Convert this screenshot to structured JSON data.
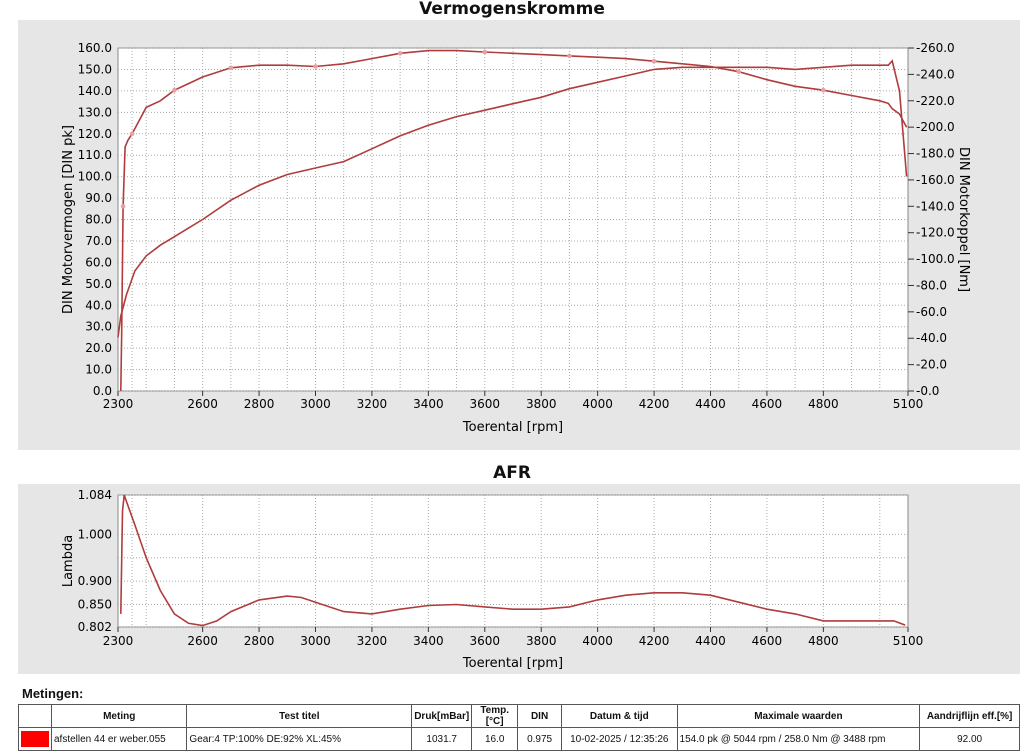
{
  "chart_data": [
    {
      "type": "line",
      "title": "Vermogenskromme",
      "xlabel": "Toerental [rpm]",
      "ylabel": "DIN Motorvermogen [DIN pk]",
      "y2label": "DIN Motorkoppel [Nm]",
      "xlim": [
        2300,
        5100
      ],
      "ylim": [
        0,
        160
      ],
      "y2lim": [
        0,
        260
      ],
      "x_ticks": [
        2300,
        2600,
        2800,
        3000,
        3200,
        3400,
        3600,
        3800,
        4000,
        4200,
        4400,
        4600,
        4800,
        5100
      ],
      "y_ticks": [
        "0.0",
        "10.0",
        "20.0",
        "30.0",
        "40.0",
        "50.0",
        "60.0",
        "70.0",
        "80.0",
        "90.0",
        "100.0",
        "110.0",
        "120.0",
        "130.0",
        "140.0",
        "150.0",
        "160.0"
      ],
      "y2_ticks": [
        "0.0",
        "20.0",
        "40.0",
        "60.0",
        "80.0",
        "100.0",
        "120.0",
        "140.0",
        "160.0",
        "180.0",
        "200.0",
        "220.0",
        "240.0",
        "260.0"
      ],
      "grid": true,
      "series": [
        {
          "axis": "right",
          "color": "#b03c3c",
          "x": [
            2310,
            2313,
            2318,
            2325,
            2335,
            2350,
            2400,
            2450,
            2500,
            2550,
            2600,
            2700,
            2800,
            2900,
            3000,
            3100,
            3200,
            3300,
            3400,
            3500,
            3600,
            3700,
            3800,
            3900,
            4000,
            4100,
            4200,
            4300,
            4400,
            4500,
            4600,
            4700,
            4800,
            4900,
            5000,
            5030,
            5044,
            5070,
            5095
          ],
          "y": [
            0,
            45,
            140,
            185,
            190,
            195,
            215,
            220,
            228,
            233,
            238,
            245,
            247,
            247,
            246,
            248,
            252,
            256,
            258,
            258,
            257,
            256,
            255,
            254,
            253,
            252,
            250,
            248,
            246,
            242,
            236,
            231,
            228,
            224,
            220,
            218,
            214,
            210,
            200
          ]
        },
        {
          "axis": "left",
          "color": "#b03c3c",
          "x": [
            2300,
            2310,
            2330,
            2360,
            2400,
            2450,
            2500,
            2550,
            2600,
            2700,
            2800,
            2900,
            3000,
            3100,
            3200,
            3300,
            3400,
            3500,
            3600,
            3700,
            3800,
            3900,
            4000,
            4100,
            4200,
            4300,
            4400,
            4500,
            4600,
            4700,
            4800,
            4900,
            5000,
            5030,
            5044,
            5070,
            5095
          ],
          "y": [
            25,
            35,
            45,
            56,
            63,
            68,
            72,
            76,
            80,
            89,
            96,
            101,
            104,
            107,
            113,
            119,
            124,
            128,
            131,
            134,
            137,
            141,
            144,
            147,
            150,
            151,
            151,
            151,
            151,
            150,
            151,
            152,
            152,
            152,
            154,
            140,
            100
          ]
        }
      ]
    },
    {
      "type": "line",
      "title": "AFR",
      "xlabel": "Toerental [rpm]",
      "ylabel": "Lambda",
      "xlim": [
        2300,
        5100
      ],
      "ylim": [
        0.802,
        1.084
      ],
      "x_ticks": [
        2300,
        2600,
        2800,
        3000,
        3200,
        3400,
        3600,
        3800,
        4000,
        4200,
        4400,
        4600,
        4800,
        5100
      ],
      "y_ticks": [
        "0.802",
        "0.850",
        "0.900",
        "1.000",
        "1.084"
      ],
      "grid": true,
      "series": [
        {
          "color": "#b03c3c",
          "x": [
            2310,
            2316,
            2322,
            2330,
            2360,
            2400,
            2450,
            2500,
            2550,
            2600,
            2650,
            2700,
            2800,
            2900,
            2950,
            3000,
            3100,
            3200,
            3300,
            3400,
            3500,
            3600,
            3700,
            3800,
            3900,
            4000,
            4100,
            4200,
            4300,
            4400,
            4500,
            4600,
            4700,
            4800,
            4900,
            5000,
            5050,
            5090
          ],
          "y": [
            0.83,
            1.05,
            1.084,
            1.07,
            1.02,
            0.95,
            0.88,
            0.83,
            0.81,
            0.805,
            0.815,
            0.835,
            0.86,
            0.868,
            0.865,
            0.855,
            0.835,
            0.83,
            0.84,
            0.848,
            0.85,
            0.845,
            0.84,
            0.84,
            0.845,
            0.86,
            0.87,
            0.875,
            0.875,
            0.87,
            0.855,
            0.84,
            0.83,
            0.815,
            0.815,
            0.815,
            0.815,
            0.806
          ]
        }
      ]
    }
  ],
  "measurements": {
    "label": "Metingen:",
    "headers": [
      "Meting",
      "Test titel",
      "Druk[mBar]",
      "Temp.[°C]",
      "DIN",
      "Datum & tijd",
      "Maximale waarden",
      "Aandrijflijn eff.[%]"
    ],
    "rows": [
      {
        "color": "#ff0000",
        "meting": "afstellen 44 er weber.055",
        "test_titel": "Gear:4 TP:100% DE:92% XL:45%",
        "druk": "1031.7",
        "temp": "16.0",
        "din": "0.975",
        "datum": "10-02-2025 / 12:35:26",
        "max": "154.0 pk @ 5044 rpm / 258.0 Nm @ 3488 rpm",
        "eff": "92.00"
      }
    ]
  }
}
